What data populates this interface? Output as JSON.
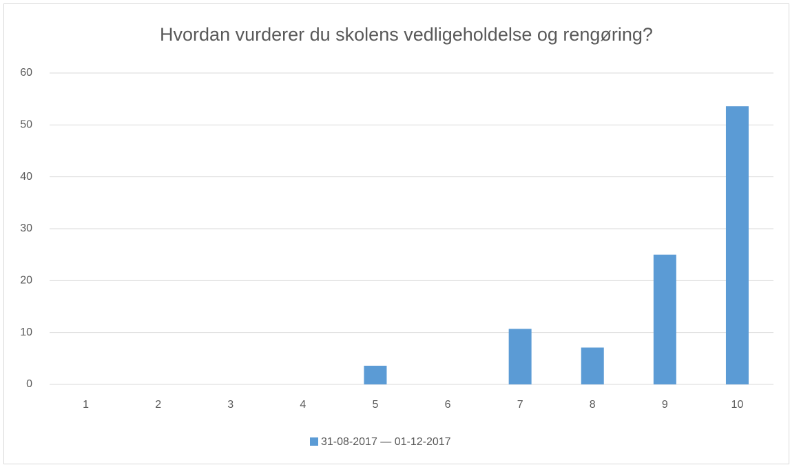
{
  "chart_data": {
    "type": "bar",
    "title": "Hvordan vurderer du skolens vedligeholdelse og rengøring?",
    "categories": [
      "1",
      "2",
      "3",
      "4",
      "5",
      "6",
      "7",
      "8",
      "9",
      "10"
    ],
    "series": [
      {
        "name": "31-08-2017 — 01-12-2017",
        "color": "#5b9bd5",
        "values": [
          0,
          0,
          0,
          0,
          3.6,
          0,
          10.7,
          7.1,
          25,
          53.6
        ]
      }
    ],
    "ylim": [
      0,
      60
    ],
    "yticks": [
      0,
      10,
      20,
      30,
      40,
      50,
      60
    ],
    "grid": true,
    "legend": "bottom"
  }
}
